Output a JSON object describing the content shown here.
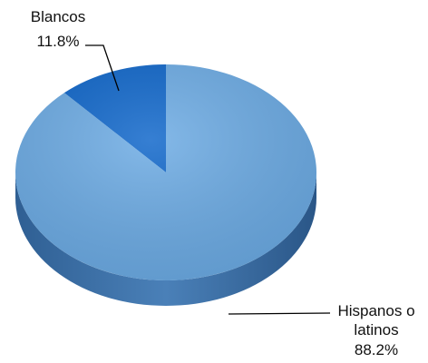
{
  "chart_data": {
    "type": "pie",
    "style": "3d",
    "slices": [
      {
        "label_lines": [
          "Blancos",
          "11.8%"
        ],
        "category": "Blancos",
        "value": 11.8,
        "value_label": "11.8%",
        "color": "#0a63c9"
      },
      {
        "label_lines": [
          "Hispanos o",
          "latinos",
          "88.2%"
        ],
        "category": "Hispanos o latinos",
        "value": 88.2,
        "value_label": "88.2%",
        "color": "#6aaae4"
      }
    ],
    "side_color": "#3f73a8",
    "leader_color": "#000000"
  }
}
